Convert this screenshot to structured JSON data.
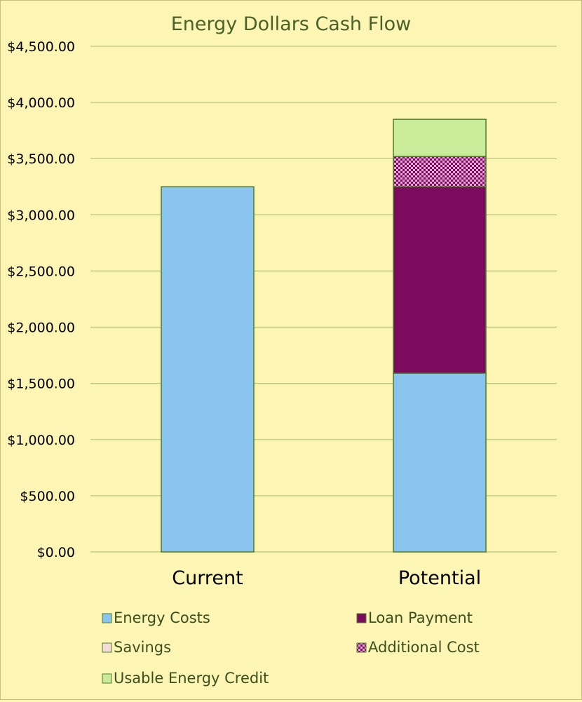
{
  "chart_data": {
    "type": "bar",
    "stacked": true,
    "title": "Energy Dollars Cash Flow",
    "categories": [
      "Current",
      "Potential"
    ],
    "ylim": [
      0,
      4500
    ],
    "y_ticks": [
      0,
      500,
      1000,
      1500,
      2000,
      2500,
      3000,
      3500,
      4000,
      4500
    ],
    "y_tick_labels": [
      "$0.00",
      "$500.00",
      "$1,000.00",
      "$1,500.00",
      "$2,000.00",
      "$2,500.00",
      "$3,000.00",
      "$3,500.00",
      "$4,000.00",
      "$4,500.00"
    ],
    "grid": true,
    "legend_position": "bottom",
    "series": [
      {
        "name": "Energy Costs",
        "values": [
          3250,
          1590
        ],
        "color": "#89c4ef",
        "pattern": "solid"
      },
      {
        "name": "Loan Payment",
        "values": [
          0,
          1660
        ],
        "color": "#7c0a5f",
        "pattern": "solid"
      },
      {
        "name": "Savings",
        "values": [
          0,
          0
        ],
        "color": "#f3dcd8",
        "pattern": "solid"
      },
      {
        "name": "Additional Cost",
        "values": [
          0,
          270
        ],
        "color": "#b3309a",
        "pattern": "checker"
      },
      {
        "name": "Usable Energy Credit",
        "values": [
          0,
          330
        ],
        "color": "#c9eb9a",
        "pattern": "solid"
      }
    ],
    "colors": {
      "background": "#fdf5b4",
      "title": "#4a6128",
      "gridline": "#b7c77e",
      "bar_border": "#4f7d28",
      "axis_text": "#000000",
      "legend_text": "#3a4f1c"
    }
  }
}
